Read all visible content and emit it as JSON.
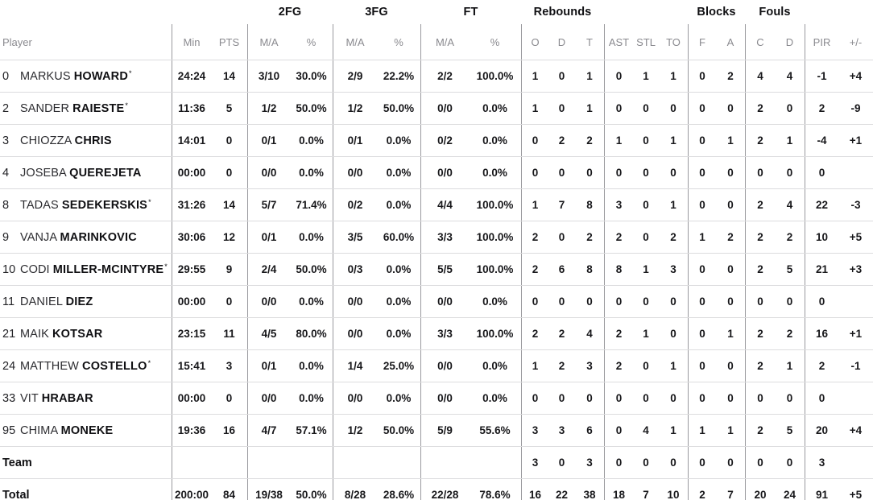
{
  "table": {
    "groups": [
      {
        "label": "2FG"
      },
      {
        "label": "3FG"
      },
      {
        "label": "FT"
      },
      {
        "label": "Rebounds"
      },
      {
        "label": "Blocks"
      },
      {
        "label": "Fouls"
      }
    ],
    "columns": [
      "Player",
      "Min",
      "PTS",
      "M/A",
      "%",
      "M/A",
      "%",
      "M/A",
      "%",
      "O",
      "D",
      "T",
      "AST",
      "STL",
      "TO",
      "F",
      "A",
      "C",
      "D",
      "PIR",
      "+/-"
    ],
    "rows": [
      {
        "num": "0",
        "first": "MARKUS",
        "last": "HOWARD",
        "star": "*",
        "min": "24:24",
        "pts": "14",
        "fg2": "3/10",
        "fg2p": "30.0%",
        "fg3": "2/9",
        "fg3p": "22.2%",
        "ft": "2/2",
        "ftp": "100.0%",
        "ro": "1",
        "rd": "0",
        "rt": "1",
        "ast": "0",
        "stl": "1",
        "to": "1",
        "bf": "0",
        "ba": "2",
        "fc": "4",
        "fd": "4",
        "pir": "-1",
        "pm": "+4"
      },
      {
        "num": "2",
        "first": "SANDER",
        "last": "RAIESTE",
        "star": "*",
        "min": "11:36",
        "pts": "5",
        "fg2": "1/2",
        "fg2p": "50.0%",
        "fg3": "1/2",
        "fg3p": "50.0%",
        "ft": "0/0",
        "ftp": "0.0%",
        "ro": "1",
        "rd": "0",
        "rt": "1",
        "ast": "0",
        "stl": "0",
        "to": "0",
        "bf": "0",
        "ba": "0",
        "fc": "2",
        "fd": "0",
        "pir": "2",
        "pm": "-9"
      },
      {
        "num": "3",
        "first": "CHIOZZA",
        "last": "CHRIS",
        "star": "",
        "min": "14:01",
        "pts": "0",
        "fg2": "0/1",
        "fg2p": "0.0%",
        "fg3": "0/1",
        "fg3p": "0.0%",
        "ft": "0/2",
        "ftp": "0.0%",
        "ro": "0",
        "rd": "2",
        "rt": "2",
        "ast": "1",
        "stl": "0",
        "to": "1",
        "bf": "0",
        "ba": "1",
        "fc": "2",
        "fd": "1",
        "pir": "-4",
        "pm": "+1"
      },
      {
        "num": "4",
        "first": "JOSEBA",
        "last": "QUEREJETA",
        "star": "",
        "min": "00:00",
        "pts": "0",
        "fg2": "0/0",
        "fg2p": "0.0%",
        "fg3": "0/0",
        "fg3p": "0.0%",
        "ft": "0/0",
        "ftp": "0.0%",
        "ro": "0",
        "rd": "0",
        "rt": "0",
        "ast": "0",
        "stl": "0",
        "to": "0",
        "bf": "0",
        "ba": "0",
        "fc": "0",
        "fd": "0",
        "pir": "0",
        "pm": ""
      },
      {
        "num": "8",
        "first": "TADAS",
        "last": "SEDEKERSKIS",
        "star": "*",
        "min": "31:26",
        "pts": "14",
        "fg2": "5/7",
        "fg2p": "71.4%",
        "fg3": "0/2",
        "fg3p": "0.0%",
        "ft": "4/4",
        "ftp": "100.0%",
        "ro": "1",
        "rd": "7",
        "rt": "8",
        "ast": "3",
        "stl": "0",
        "to": "1",
        "bf": "0",
        "ba": "0",
        "fc": "2",
        "fd": "4",
        "pir": "22",
        "pm": "-3"
      },
      {
        "num": "9",
        "first": "VANJA",
        "last": "MARINKOVIC",
        "star": "",
        "min": "30:06",
        "pts": "12",
        "fg2": "0/1",
        "fg2p": "0.0%",
        "fg3": "3/5",
        "fg3p": "60.0%",
        "ft": "3/3",
        "ftp": "100.0%",
        "ro": "2",
        "rd": "0",
        "rt": "2",
        "ast": "2",
        "stl": "0",
        "to": "2",
        "bf": "1",
        "ba": "2",
        "fc": "2",
        "fd": "2",
        "pir": "10",
        "pm": "+5"
      },
      {
        "num": "10",
        "first": "CODI",
        "last": "MILLER-MCINTYRE",
        "star": "*",
        "min": "29:55",
        "pts": "9",
        "fg2": "2/4",
        "fg2p": "50.0%",
        "fg3": "0/3",
        "fg3p": "0.0%",
        "ft": "5/5",
        "ftp": "100.0%",
        "ro": "2",
        "rd": "6",
        "rt": "8",
        "ast": "8",
        "stl": "1",
        "to": "3",
        "bf": "0",
        "ba": "0",
        "fc": "2",
        "fd": "5",
        "pir": "21",
        "pm": "+3"
      },
      {
        "num": "11",
        "first": "DANIEL",
        "last": "DIEZ",
        "star": "",
        "min": "00:00",
        "pts": "0",
        "fg2": "0/0",
        "fg2p": "0.0%",
        "fg3": "0/0",
        "fg3p": "0.0%",
        "ft": "0/0",
        "ftp": "0.0%",
        "ro": "0",
        "rd": "0",
        "rt": "0",
        "ast": "0",
        "stl": "0",
        "to": "0",
        "bf": "0",
        "ba": "0",
        "fc": "0",
        "fd": "0",
        "pir": "0",
        "pm": ""
      },
      {
        "num": "21",
        "first": "MAIK",
        "last": "KOTSAR",
        "star": "",
        "min": "23:15",
        "pts": "11",
        "fg2": "4/5",
        "fg2p": "80.0%",
        "fg3": "0/0",
        "fg3p": "0.0%",
        "ft": "3/3",
        "ftp": "100.0%",
        "ro": "2",
        "rd": "2",
        "rt": "4",
        "ast": "2",
        "stl": "1",
        "to": "0",
        "bf": "0",
        "ba": "1",
        "fc": "2",
        "fd": "2",
        "pir": "16",
        "pm": "+1"
      },
      {
        "num": "24",
        "first": "MATTHEW",
        "last": "COSTELLO",
        "star": "*",
        "min": "15:41",
        "pts": "3",
        "fg2": "0/1",
        "fg2p": "0.0%",
        "fg3": "1/4",
        "fg3p": "25.0%",
        "ft": "0/0",
        "ftp": "0.0%",
        "ro": "1",
        "rd": "2",
        "rt": "3",
        "ast": "2",
        "stl": "0",
        "to": "1",
        "bf": "0",
        "ba": "0",
        "fc": "2",
        "fd": "1",
        "pir": "2",
        "pm": "-1"
      },
      {
        "num": "33",
        "first": "VIT",
        "last": "HRABAR",
        "star": "",
        "min": "00:00",
        "pts": "0",
        "fg2": "0/0",
        "fg2p": "0.0%",
        "fg3": "0/0",
        "fg3p": "0.0%",
        "ft": "0/0",
        "ftp": "0.0%",
        "ro": "0",
        "rd": "0",
        "rt": "0",
        "ast": "0",
        "stl": "0",
        "to": "0",
        "bf": "0",
        "ba": "0",
        "fc": "0",
        "fd": "0",
        "pir": "0",
        "pm": ""
      },
      {
        "num": "95",
        "first": "CHIMA",
        "last": "MONEKE",
        "star": "",
        "min": "19:36",
        "pts": "16",
        "fg2": "4/7",
        "fg2p": "57.1%",
        "fg3": "1/2",
        "fg3p": "50.0%",
        "ft": "5/9",
        "ftp": "55.6%",
        "ro": "3",
        "rd": "3",
        "rt": "6",
        "ast": "0",
        "stl": "4",
        "to": "1",
        "bf": "1",
        "ba": "1",
        "fc": "2",
        "fd": "5",
        "pir": "20",
        "pm": "+4"
      },
      {
        "label": "Team",
        "min": "",
        "pts": "",
        "fg2": "",
        "fg2p": "",
        "fg3": "",
        "fg3p": "",
        "ft": "",
        "ftp": "",
        "ro": "3",
        "rd": "0",
        "rt": "3",
        "ast": "0",
        "stl": "0",
        "to": "0",
        "bf": "0",
        "ba": "0",
        "fc": "0",
        "fd": "0",
        "pir": "3",
        "pm": ""
      },
      {
        "label": "Total",
        "min": "200:00",
        "pts": "84",
        "fg2": "19/38",
        "fg2p": "50.0%",
        "fg3": "8/28",
        "fg3p": "28.6%",
        "ft": "22/28",
        "ftp": "78.6%",
        "ro": "16",
        "rd": "22",
        "rt": "38",
        "ast": "18",
        "stl": "7",
        "to": "10",
        "bf": "2",
        "ba": "7",
        "fc": "20",
        "fd": "24",
        "pir": "91",
        "pm": "+5"
      }
    ]
  }
}
